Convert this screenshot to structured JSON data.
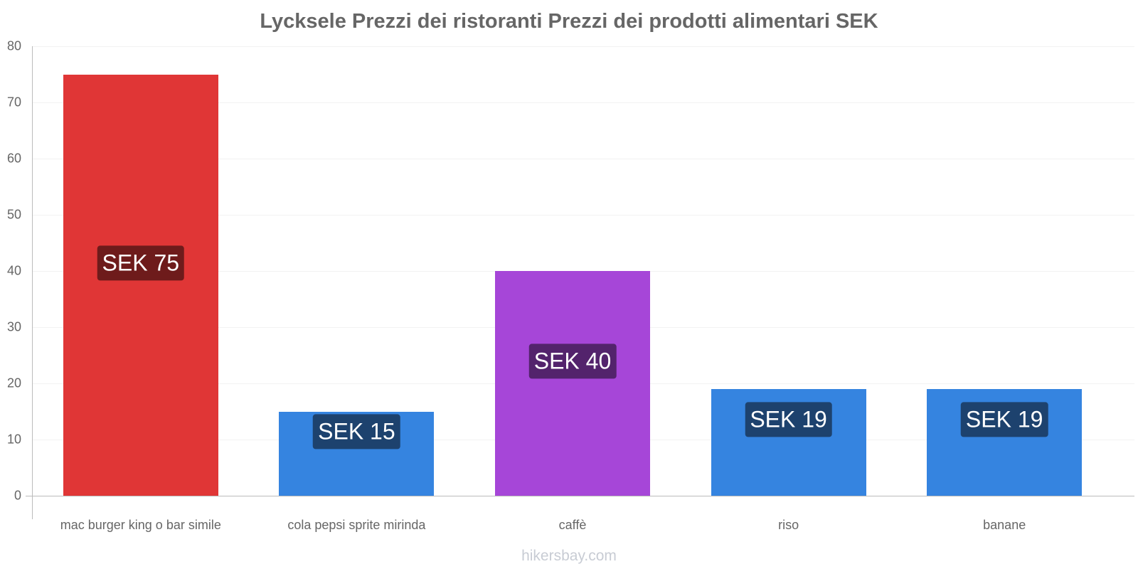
{
  "chart_data": {
    "type": "bar",
    "title": "Lycksele Prezzi dei ristoranti Prezzi dei prodotti alimentari SEK",
    "categories": [
      "mac burger king o bar simile",
      "cola pepsi sprite mirinda",
      "caffè",
      "riso",
      "banane"
    ],
    "values": [
      75,
      15,
      40,
      19,
      19
    ],
    "value_labels": [
      "SEK 75",
      "SEK 15",
      "SEK 40",
      "SEK 19",
      "SEK 19"
    ],
    "bar_colors": [
      "#e03636",
      "#3584e0",
      "#a646d8",
      "#3584e0",
      "#3584e0"
    ],
    "label_colors": [
      "#6e1b1b",
      "#1d426e",
      "#53236c",
      "#1d426e",
      "#1d426e"
    ],
    "xlabel": "",
    "ylabel": "",
    "ylim": [
      0,
      80
    ],
    "yticks": [
      "0",
      "10",
      "20",
      "30",
      "40",
      "50",
      "60",
      "70",
      "80"
    ],
    "grid": true,
    "legend": "none"
  },
  "watermark": "hikersbay.com"
}
